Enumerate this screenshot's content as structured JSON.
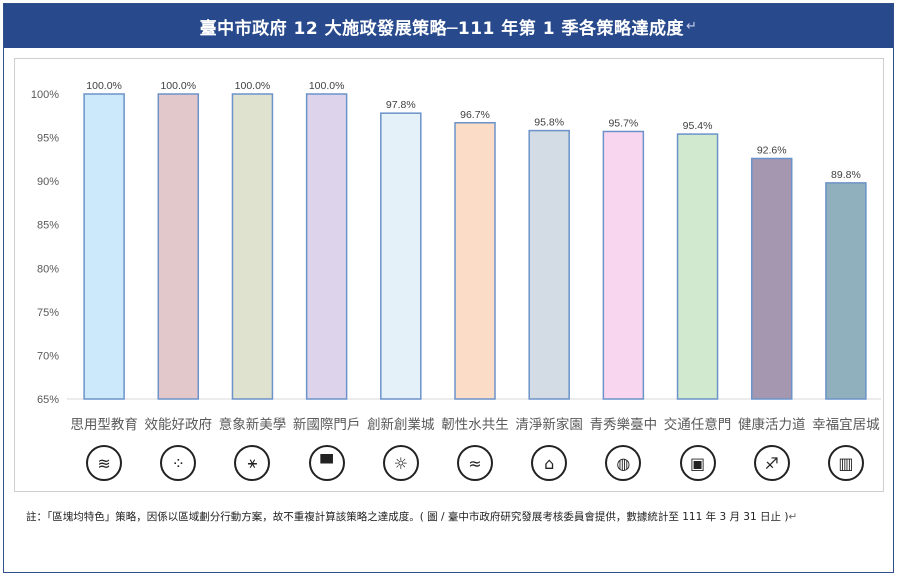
{
  "title": "臺中市政府 12 大施政發展策略─111 年第 1 季各策略達成度",
  "return_mark": "↵",
  "chart_data": {
    "type": "bar",
    "categories": [
      "思用型教育",
      "效能好政府",
      "意象新美學",
      "新國際門戶",
      "創新創業城",
      "韌性水共生",
      "清淨新家園",
      "青秀樂臺中",
      "交通任意門",
      "健康活力道",
      "幸福宜居城"
    ],
    "values": [
      100.0,
      100.0,
      100.0,
      100.0,
      97.8,
      96.7,
      95.8,
      95.7,
      95.4,
      92.6,
      89.8
    ],
    "value_labels": [
      "100.0%",
      "100.0%",
      "100.0%",
      "100.0%",
      "97.8%",
      "96.7%",
      "95.8%",
      "95.7%",
      "95.4%",
      "92.6%",
      "89.8%"
    ],
    "bar_colors": [
      "#cce8fb",
      "#e3c8cb",
      "#dfe2cf",
      "#ddd3ea",
      "#e4f1f9",
      "#fbdcc6",
      "#d3dbe4",
      "#f8d6ef",
      "#d0e9cf",
      "#a597b0",
      "#8fb0bc"
    ],
    "bar_stroke": "#6b93c9",
    "yticks": [
      "100%",
      "95%",
      "90%",
      "85%",
      "80%",
      "75%",
      "70%",
      "65%"
    ],
    "ylim": [
      65,
      100
    ],
    "grid": false,
    "title": "",
    "xlabel": "",
    "ylabel": ""
  },
  "icons": [
    "stack-icon",
    "network-grid-icon",
    "molecule-icon",
    "gate-icon",
    "lightbulb-icon",
    "waves-icon",
    "house-tree-icon",
    "globe-icon",
    "bus-icon",
    "runner-icon",
    "building-icon"
  ],
  "icon_glyphs": [
    "≋",
    "⁘",
    "⚹",
    "▀",
    "☼",
    "≈",
    "⌂",
    "◍",
    "▣",
    "♐",
    "▥"
  ],
  "note": "註：「區塊均特色」策略，因係以區域劃分行動方案，故不重複計算該策略之達成度。( 圖 / 臺中市政府研究發展考核委員會提供，數據統計至 111 年 3 月 31 日止 )"
}
